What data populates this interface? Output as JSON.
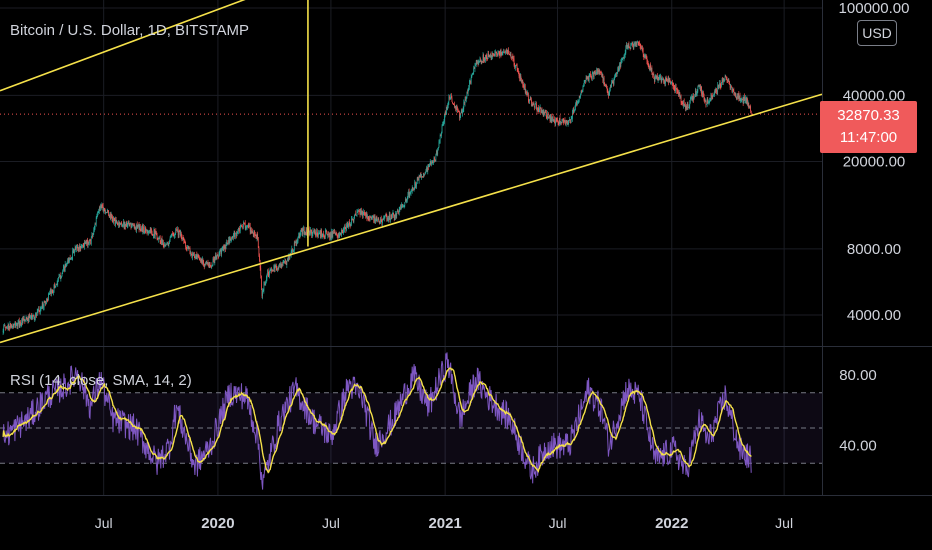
{
  "header": {
    "title": "Bitcoin / U.S. Dollar, 1D, BITSTAMP",
    "currency_button": "USD"
  },
  "rsi_header": {
    "title": "RSI (14, close, SMA, 14, 2)"
  },
  "last_price": {
    "price": "32870.33",
    "countdown": "11:47:00"
  },
  "colors": {
    "background": "#000000",
    "candle_up": "#26a69a",
    "candle_down": "#ef5350",
    "trendline": "#f5e14a",
    "rsi_line": "#7e57c2",
    "rsi_sma": "#f5e14a",
    "price_tag": "#f05a5b"
  },
  "chart_data": [
    {
      "type": "candlestick",
      "title": "Bitcoin / U.S. Dollar, 1D, BITSTAMP",
      "scale": "log",
      "y_unit": "USD",
      "y_ticks": [
        "100000.00",
        "40000.00",
        "20000.00",
        "8000.00",
        "4000.00"
      ],
      "y_tick_values": [
        100000,
        40000,
        20000,
        8000,
        4000
      ],
      "x_tick_labels": [
        "Jul",
        "2020",
        "Jul",
        "2021",
        "Jul",
        "2022",
        "Jul"
      ],
      "x_tick_dates": [
        "2019-07-01",
        "2020-01-01",
        "2020-07-01",
        "2021-01-01",
        "2021-07-01",
        "2022-01-01",
        "2022-07-01"
      ],
      "x_range": [
        "2019-01-15",
        "2022-08-31"
      ],
      "grid": true,
      "last_price": 32870.33,
      "price_path": [
        [
          "2019-01-20",
          3500
        ],
        [
          "2019-02-10",
          3600
        ],
        [
          "2019-03-15",
          4000
        ],
        [
          "2019-04-10",
          5200
        ],
        [
          "2019-05-15",
          7900
        ],
        [
          "2019-06-10",
          8700
        ],
        [
          "2019-06-26",
          12800
        ],
        [
          "2019-07-20",
          10500
        ],
        [
          "2019-08-15",
          10200
        ],
        [
          "2019-09-20",
          9500
        ],
        [
          "2019-10-10",
          8200
        ],
        [
          "2019-10-26",
          9900
        ],
        [
          "2019-11-20",
          7500
        ],
        [
          "2019-12-18",
          6700
        ],
        [
          "2020-01-20",
          8700
        ],
        [
          "2020-02-13",
          10400
        ],
        [
          "2020-03-05",
          9000
        ],
        [
          "2020-03-12",
          4900
        ],
        [
          "2020-03-20",
          6200
        ],
        [
          "2020-04-20",
          7000
        ],
        [
          "2020-05-15",
          9600
        ],
        [
          "2020-06-15",
          9400
        ],
        [
          "2020-07-15",
          9200
        ],
        [
          "2020-08-15",
          11800
        ],
        [
          "2020-09-15",
          10700
        ],
        [
          "2020-10-15",
          11500
        ],
        [
          "2020-11-15",
          16000
        ],
        [
          "2020-12-16",
          20500
        ],
        [
          "2021-01-08",
          40000
        ],
        [
          "2021-01-25",
          32000
        ],
        [
          "2021-02-20",
          57000
        ],
        [
          "2021-03-13",
          61000
        ],
        [
          "2021-04-14",
          63500
        ],
        [
          "2021-05-19",
          37000
        ],
        [
          "2021-06-22",
          31000
        ],
        [
          "2021-07-20",
          29900
        ],
        [
          "2021-08-15",
          47000
        ],
        [
          "2021-09-07",
          52000
        ],
        [
          "2021-09-21",
          40700
        ],
        [
          "2021-10-20",
          66000
        ],
        [
          "2021-11-10",
          68000
        ],
        [
          "2021-12-04",
          48000
        ],
        [
          "2021-12-31",
          46300
        ],
        [
          "2022-01-24",
          35000
        ],
        [
          "2022-02-15",
          44000
        ],
        [
          "2022-02-24",
          37000
        ],
        [
          "2022-03-28",
          47500
        ],
        [
          "2022-04-15",
          40000
        ],
        [
          "2022-04-30",
          37700
        ],
        [
          "2022-05-06",
          36000
        ],
        [
          "2022-05-09",
          32870
        ]
      ],
      "trendlines": [
        {
          "name": "lower",
          "points": [
            [
              "2019-01-15",
              3000
            ],
            [
              "2022-08-31",
              40500
            ]
          ]
        },
        {
          "name": "upper",
          "points": [
            [
              "2019-01-15",
              42000
            ],
            [
              "2020-05-25",
              140000
            ]
          ]
        },
        {
          "name": "vertical",
          "points": [
            [
              "2020-05-25",
              8200
            ],
            [
              "2020-05-25",
              110000
            ]
          ]
        }
      ]
    },
    {
      "type": "line",
      "title": "RSI (14, close, SMA, 14, 2)",
      "y_ticks": [
        "80.00",
        "40.00"
      ],
      "y_tick_values": [
        80,
        40
      ],
      "ylim": [
        12,
        96
      ],
      "bands": [
        30,
        50,
        70
      ],
      "series": [
        {
          "name": "RSI",
          "color": "#7e57c2"
        },
        {
          "name": "SMA",
          "color": "#f5e14a"
        }
      ],
      "rsi_path": [
        [
          "2019-01-20",
          45
        ],
        [
          "2019-03-01",
          55
        ],
        [
          "2019-04-01",
          68
        ],
        [
          "2019-05-01",
          74
        ],
        [
          "2019-05-20",
          82
        ],
        [
          "2019-06-10",
          62
        ],
        [
          "2019-06-26",
          78
        ],
        [
          "2019-07-15",
          55
        ],
        [
          "2019-08-20",
          50
        ],
        [
          "2019-09-25",
          30
        ],
        [
          "2019-10-15",
          40
        ],
        [
          "2019-10-26",
          62
        ],
        [
          "2019-11-25",
          28
        ],
        [
          "2019-12-20",
          40
        ],
        [
          "2020-01-20",
          70
        ],
        [
          "2020-02-15",
          68
        ],
        [
          "2020-03-05",
          45
        ],
        [
          "2020-03-13",
          18
        ],
        [
          "2020-04-10",
          55
        ],
        [
          "2020-05-05",
          72
        ],
        [
          "2020-06-01",
          55
        ],
        [
          "2020-07-01",
          45
        ],
        [
          "2020-07-30",
          75
        ],
        [
          "2020-08-20",
          68
        ],
        [
          "2020-09-10",
          40
        ],
        [
          "2020-10-10",
          55
        ],
        [
          "2020-11-10",
          80
        ],
        [
          "2020-12-05",
          62
        ],
        [
          "2021-01-05",
          88
        ],
        [
          "2021-01-25",
          55
        ],
        [
          "2021-02-20",
          78
        ],
        [
          "2021-03-10",
          68
        ],
        [
          "2021-04-15",
          55
        ],
        [
          "2021-05-20",
          25
        ],
        [
          "2021-06-15",
          40
        ],
        [
          "2021-07-20",
          40
        ],
        [
          "2021-08-20",
          72
        ],
        [
          "2021-09-10",
          60
        ],
        [
          "2021-09-22",
          40
        ],
        [
          "2021-10-20",
          72
        ],
        [
          "2021-11-10",
          68
        ],
        [
          "2021-12-05",
          32
        ],
        [
          "2022-01-05",
          38
        ],
        [
          "2022-01-24",
          25
        ],
        [
          "2022-02-15",
          55
        ],
        [
          "2022-03-01",
          42
        ],
        [
          "2022-03-28",
          68
        ],
        [
          "2022-04-20",
          38
        ],
        [
          "2022-05-09",
          32
        ]
      ]
    }
  ]
}
